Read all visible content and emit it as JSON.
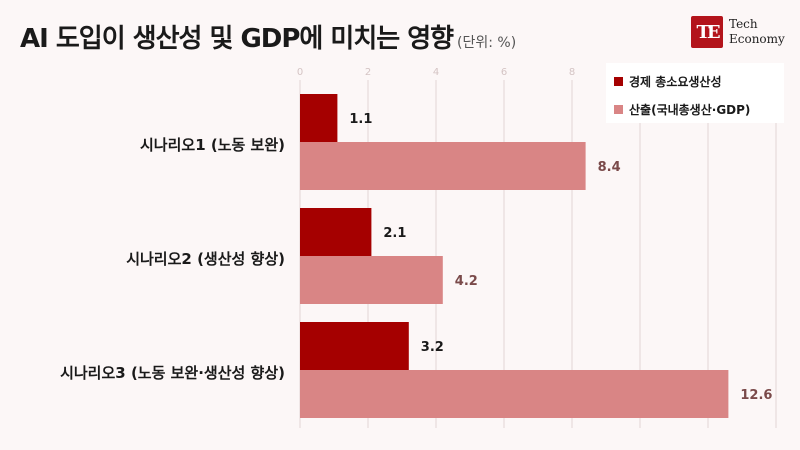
{
  "title": "AI 도입이 생산성 및 GDP에 미치는 영향",
  "unit_label": "(단위: %)",
  "logo": {
    "mark": "TE",
    "line1": "Tech",
    "line2": "Economy"
  },
  "colors": {
    "tfp": "#a50000",
    "gdp": "#d98585",
    "grid": "#e2d6d6",
    "value_tfp": "#1a1a1a",
    "value_gdp": "#7a4a4a"
  },
  "chart_data": {
    "type": "bar",
    "orientation": "horizontal",
    "categories": [
      "시나리오1 (노동 보완)",
      "시나리오2 (생산성 향상)",
      "시나리오3 (노동 보완·생산성 향상)"
    ],
    "series": [
      {
        "name": "경제 총소요생산성",
        "values": [
          1.1,
          2.1,
          3.2
        ]
      },
      {
        "name": "산출(국내총생산·GDP)",
        "values": [
          8.4,
          4.2,
          12.6
        ]
      }
    ],
    "xlim": [
      0,
      14
    ],
    "x_ticks": [
      0,
      2,
      4,
      6,
      8,
      10,
      12,
      14
    ],
    "x_tick_labels": [
      "0",
      "2",
      "4",
      "6",
      "8",
      "",
      "",
      ""
    ],
    "grid": true,
    "legend_position": "top-right"
  }
}
